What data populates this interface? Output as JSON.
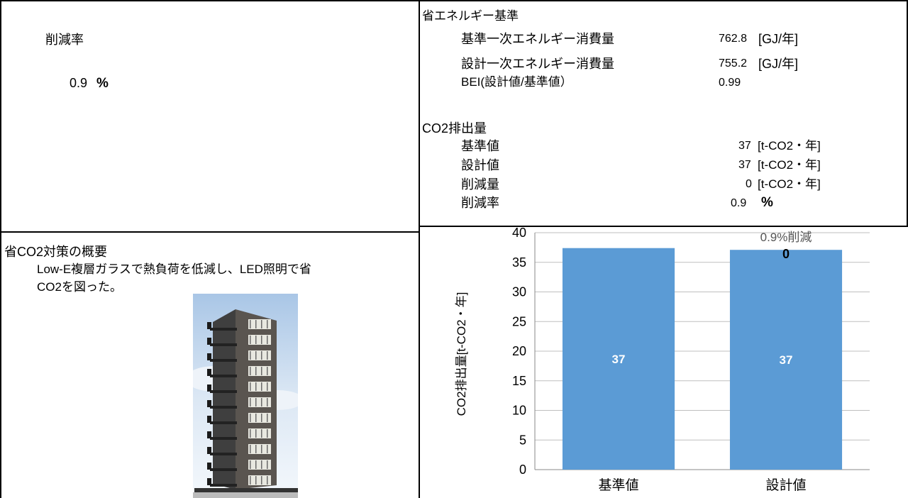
{
  "reduction": {
    "label": "削減率",
    "value": "0.9",
    "unit": "%"
  },
  "measures": {
    "title": "省CO2対策の概要",
    "text_line1": "Low-E複層ガラスで熱負荷を低減し、LED照明で省",
    "text_line2": "CO2を図った。"
  },
  "energy": {
    "title": "省エネルギー基準",
    "rows": [
      {
        "label": "基準一次エネルギー消費量",
        "value": "762.8",
        "unit": "[GJ/年]"
      },
      {
        "label": "設計一次エネルギー消費量",
        "value": "755.2",
        "unit": "[GJ/年]"
      },
      {
        "label": "BEI(設計値/基準値）",
        "value": "0.99",
        "unit": ""
      }
    ]
  },
  "co2": {
    "title": "CO2排出量",
    "rows": [
      {
        "label": "基準値",
        "value": "37",
        "unit": "[t-CO2・年]"
      },
      {
        "label": "設計値",
        "value": "37",
        "unit": "[t-CO2・年]"
      },
      {
        "label": "削減量",
        "value": "0",
        "unit": "[t-CO2・年]"
      },
      {
        "label": "削減率",
        "value": "0.9",
        "unit": "%"
      }
    ]
  },
  "chart_data": {
    "type": "bar",
    "categories": [
      "基準値",
      "設計値"
    ],
    "values": [
      37.4,
      37.1
    ],
    "data_labels": [
      "37",
      "37"
    ],
    "ylabel": "CO2排出量[t-CO2・年]",
    "ylim": [
      0,
      40
    ],
    "yticks": [
      0,
      5,
      10,
      15,
      20,
      25,
      30,
      35,
      40
    ],
    "grid": true,
    "bar_color": "#5b9bd5",
    "annotation_text": "0.9%削減",
    "annotation_value": "0"
  },
  "image": {
    "icon": "building-photo"
  }
}
